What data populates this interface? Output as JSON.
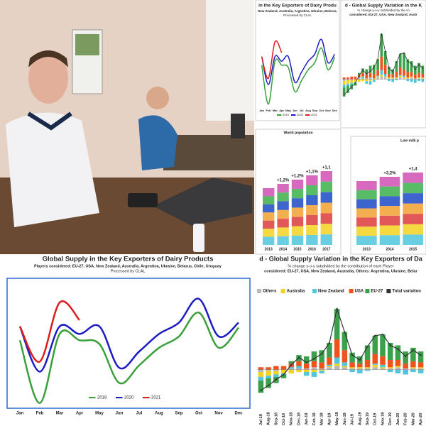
{
  "chart_data": [
    {
      "type": "line",
      "title": "Global Supply in the Key Exporters of Dairy Products",
      "subtitle": "Players considered: EU-27, USA, New Zealand, Australia, Argentina, Ukraine, Belarus, Chile, Uruguay",
      "credit": "Processed by CLAL",
      "categories": [
        "Jan",
        "Feb",
        "Mar",
        "Apr",
        "May",
        "Jun",
        "Jul",
        "Aug",
        "Sep",
        "Oct",
        "Nov",
        "Dec"
      ],
      "ylim": [
        0,
        100
      ],
      "series": [
        {
          "name": "2019",
          "color": "#3aa03a",
          "values": [
            53,
            3,
            58,
            53,
            50,
            19,
            33,
            47,
            56,
            75,
            47,
            63
          ]
        },
        {
          "name": "2020",
          "color": "#1c1cc4",
          "values": [
            64,
            28,
            64,
            58,
            64,
            31,
            44,
            58,
            67,
            86,
            56,
            67
          ]
        },
        {
          "name": "2021",
          "color": "#dd1c1c",
          "values": [
            64,
            36,
            83,
            69,
            null,
            null,
            null,
            null,
            null,
            null,
            null,
            null
          ]
        }
      ]
    },
    {
      "type": "stacked_bar",
      "title": "d - Global Supply Variation in the Key Exporters of Da",
      "subtitle": "% change y-o-y subdivided by the contribution of each Player",
      "subtitle2": "considered: EU-27, USA, New Zealand, Australia, Others: Argentina, Ukraine, Belar",
      "categories": [
        "Jul-18",
        "Aug-18",
        "Sep-18",
        "Oct-18",
        "Nov-18",
        "Dec-18",
        "Jan-19",
        "Feb-19",
        "Mar-19",
        "Apr-19",
        "May-19",
        "Jun-19",
        "Jul-19",
        "Aug-19",
        "Sep-19",
        "Oct-19",
        "Nov-19",
        "Dec-19",
        "Jan-20",
        "Feb-20",
        "Mar-20",
        "Apr-20"
      ],
      "ylim": [
        -3,
        6
      ],
      "series": [
        {
          "name": "Others",
          "color": "#b8b8b8",
          "values": [
            -0.2,
            -0.1,
            -0.1,
            0,
            0.1,
            0.1,
            0.1,
            0.2,
            0.1,
            0.2,
            0.3,
            0.2,
            0.1,
            0.1,
            0.1,
            0.2,
            0.1,
            0.1,
            0.2,
            0.1,
            0.1,
            0.1
          ]
        },
        {
          "name": "Australia",
          "color": "#f2d21e",
          "values": [
            -0.4,
            -0.4,
            -0.3,
            -0.3,
            -0.3,
            -0.2,
            -0.2,
            -0.2,
            -0.1,
            0.1,
            0.2,
            0.1,
            0.1,
            0.1,
            0.1,
            0.2,
            0.1,
            0.1,
            0.1,
            0,
            0.1,
            0.1
          ]
        },
        {
          "name": "New Zealand",
          "color": "#4fc6dd",
          "values": [
            -0.3,
            -0.2,
            -0.2,
            -0.1,
            0.1,
            0.2,
            -0.3,
            -0.4,
            -0.2,
            0.1,
            0.5,
            0.3,
            -0.2,
            -0.3,
            -0.1,
            0.1,
            0.2,
            -0.2,
            -0.3,
            -0.4,
            -0.2,
            -0.3
          ]
        },
        {
          "name": "USA",
          "color": "#f0521c",
          "values": [
            0.2,
            0.2,
            0.3,
            0.3,
            0.3,
            0.4,
            0.4,
            0.5,
            0.5,
            0.6,
            1.5,
            1,
            0.4,
            0.3,
            0.6,
            0.8,
            0.7,
            0.6,
            0.5,
            0.4,
            0.5,
            0.4
          ]
        },
        {
          "name": "EU-27",
          "color": "#3aa04a",
          "values": [
            -1,
            -0.8,
            -0.5,
            -0.3,
            0.2,
            0.5,
            0.6,
            0.8,
            1,
            1.2,
            2.5,
            1.5,
            0.8,
            0.6,
            1.2,
            1.5,
            1.8,
            1.4,
            1.2,
            1,
            1.1,
            0.9
          ]
        }
      ],
      "line": {
        "name": "Total variation",
        "color": "#333333",
        "values": [
          -1.7,
          -1.3,
          -0.8,
          -0.4,
          0.4,
          1,
          0.6,
          0.9,
          1.3,
          2.2,
          5,
          3.1,
          1.2,
          0.8,
          1.9,
          2.8,
          2.9,
          2,
          1.7,
          1.1,
          1.6,
          1.2
        ]
      }
    }
  ],
  "top_panels": {
    "line_title": "in the Key Exporters of Dairy Produ",
    "line_sub": "New Zealand, Australia, Argentina, Ukraine, Belarus,",
    "line_credit": "Processed by CLAL",
    "bar_title": "d - Global Supply Variation in the K",
    "bar_sub": "% change y-o-y subdivided by the co",
    "bar_sub2": "considered: EU-27, USA, New Zealand, Austr",
    "table1_title": "World population",
    "table1_changes": [
      "+1,2%",
      "+1,2%",
      "+1,1%",
      "+1,1"
    ],
    "table1_years": [
      "2013",
      "2014",
      "2015",
      "2016",
      "2017"
    ],
    "table2_title": "Low milk p",
    "table2_changes": [
      "+3,2%",
      "+1,4"
    ],
    "table2_years": [
      "2013",
      "2014",
      "2015"
    ]
  }
}
